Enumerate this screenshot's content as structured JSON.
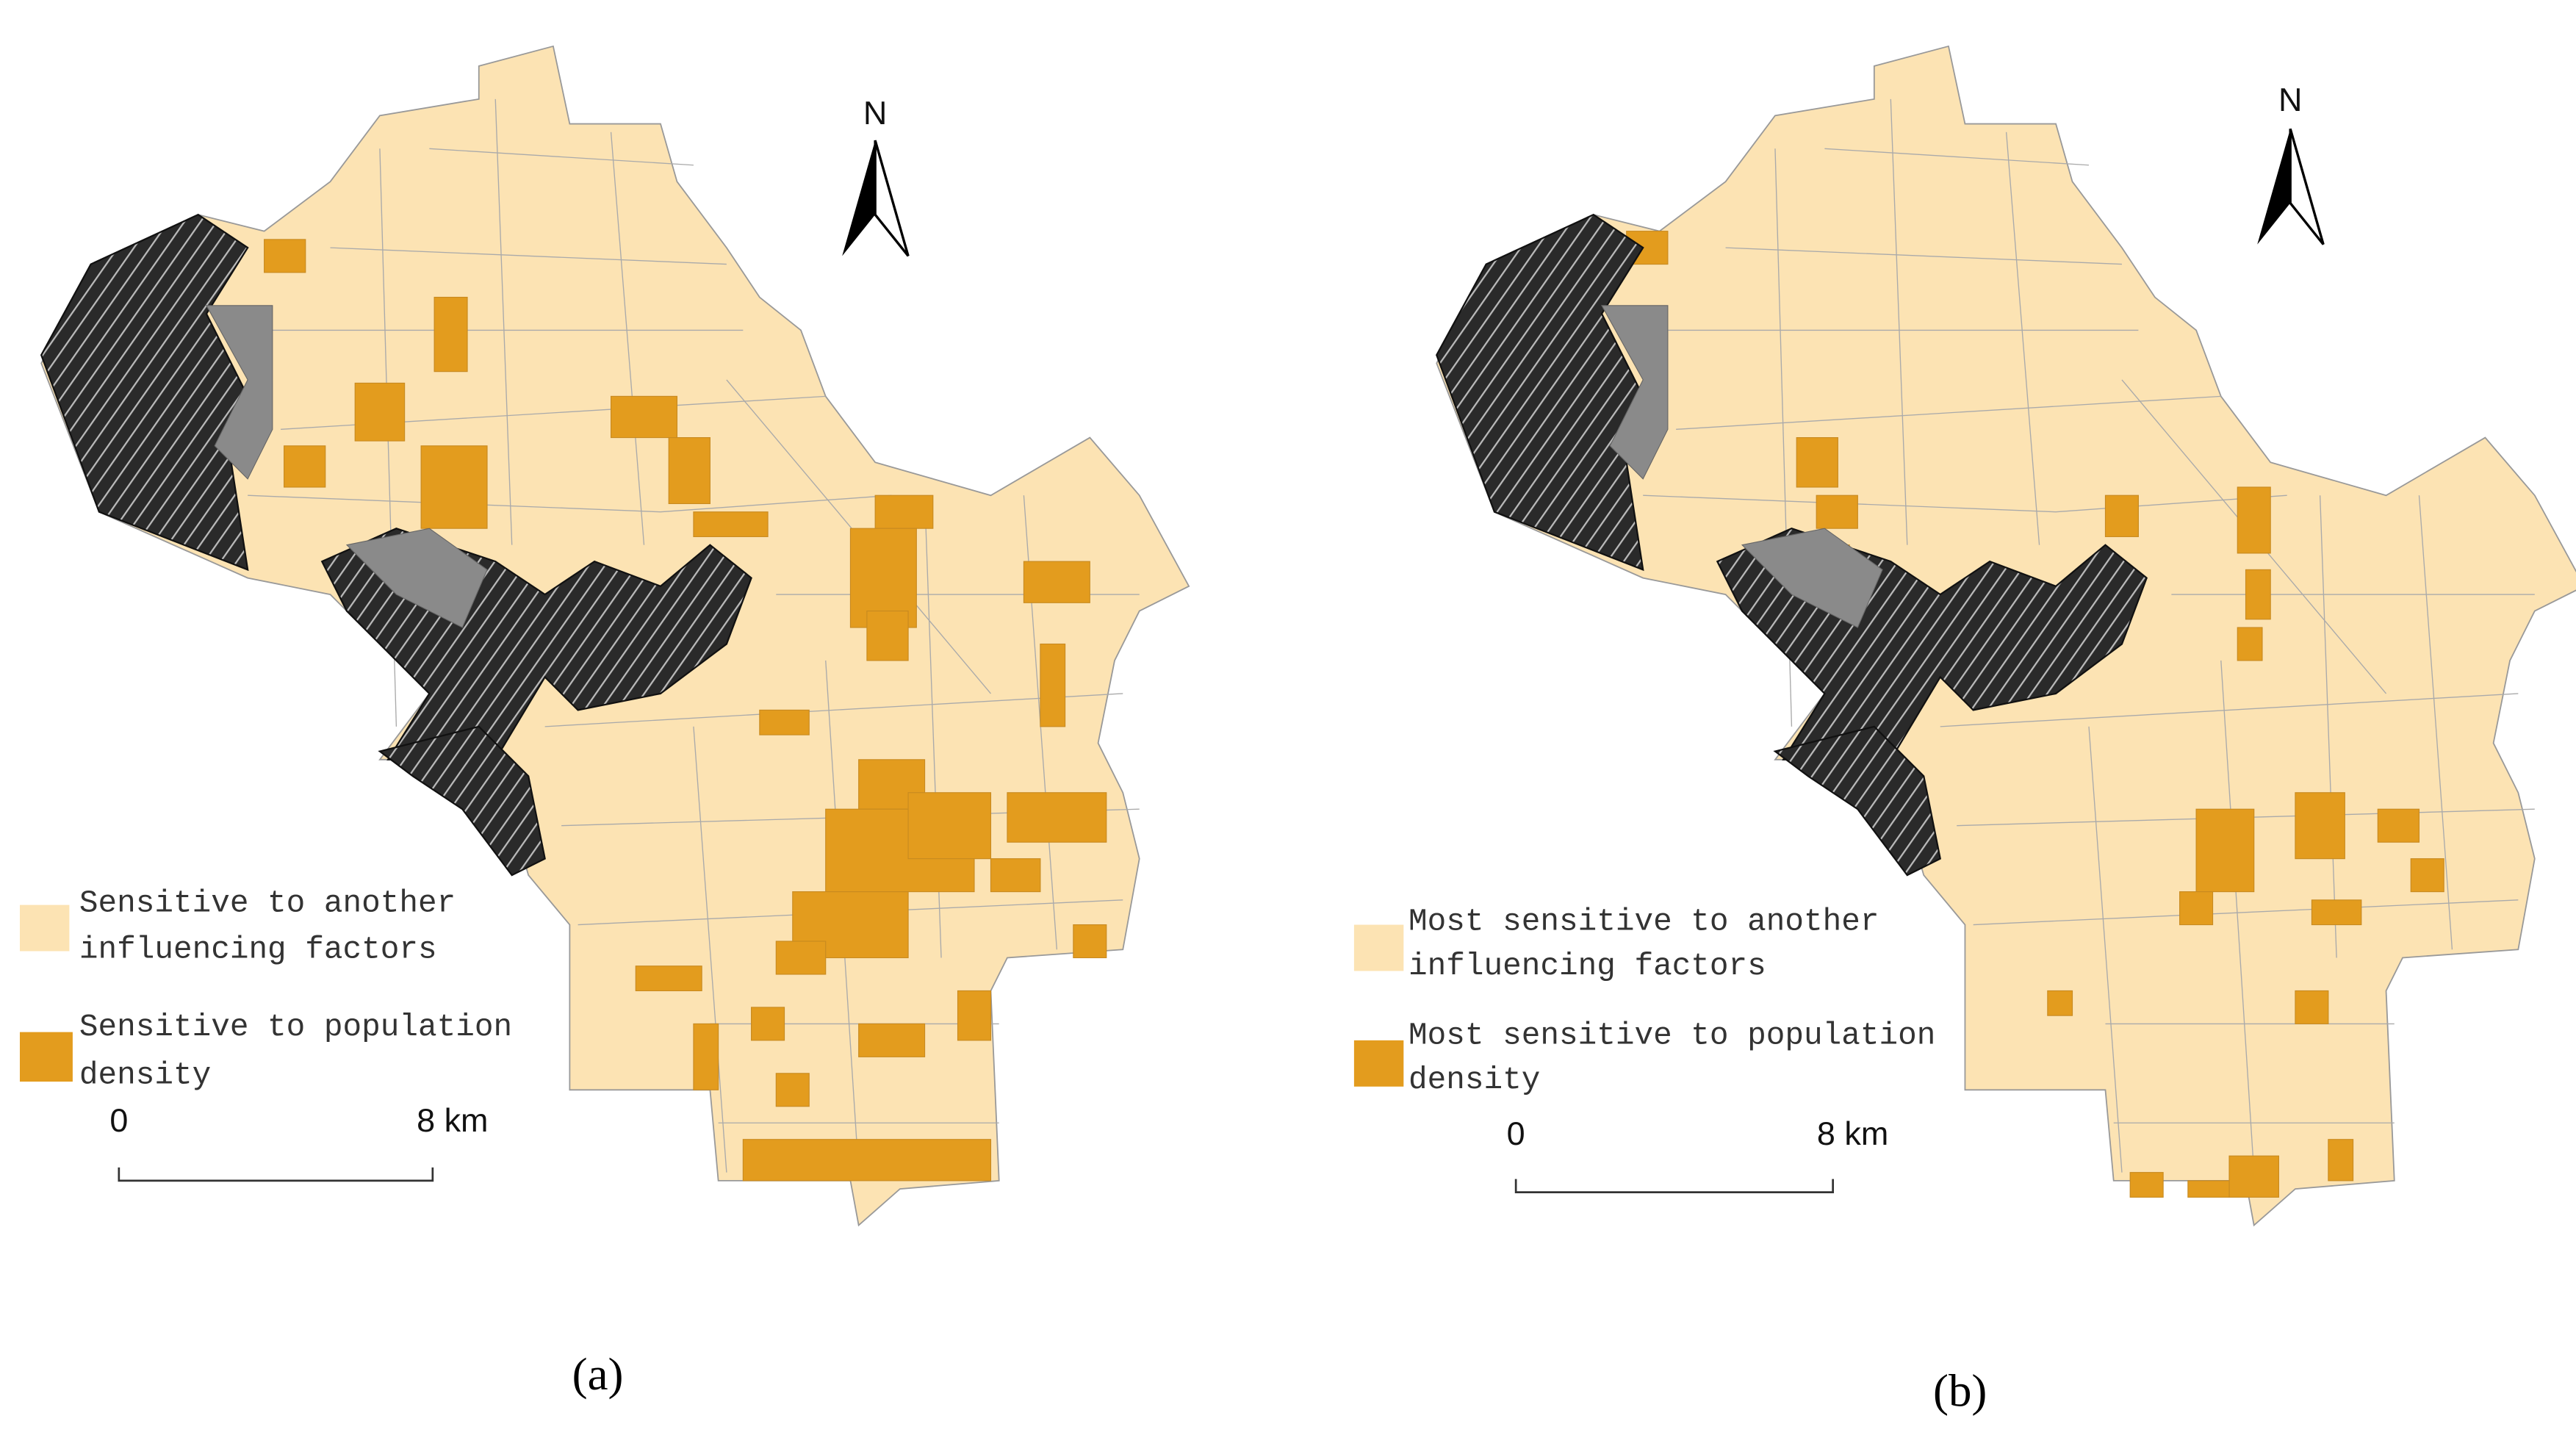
{
  "panels": [
    {
      "north": "N",
      "legend": [
        {
          "lines": [
            "Sensitive to another",
            "influencing factors"
          ]
        },
        {
          "lines": [
            "Sensitive to population",
            "density"
          ]
        }
      ],
      "scale": {
        "start": "0",
        "end": "8 km"
      },
      "caption": "(a)"
    },
    {
      "north": "N",
      "legend": [
        {
          "lines": [
            "Most sensitive to another",
            "influencing factors"
          ]
        },
        {
          "lines": [
            "Most sensitive to population",
            "density"
          ]
        }
      ],
      "scale": {
        "start": "0",
        "end": "8 km"
      },
      "caption": "(b)"
    }
  ]
}
